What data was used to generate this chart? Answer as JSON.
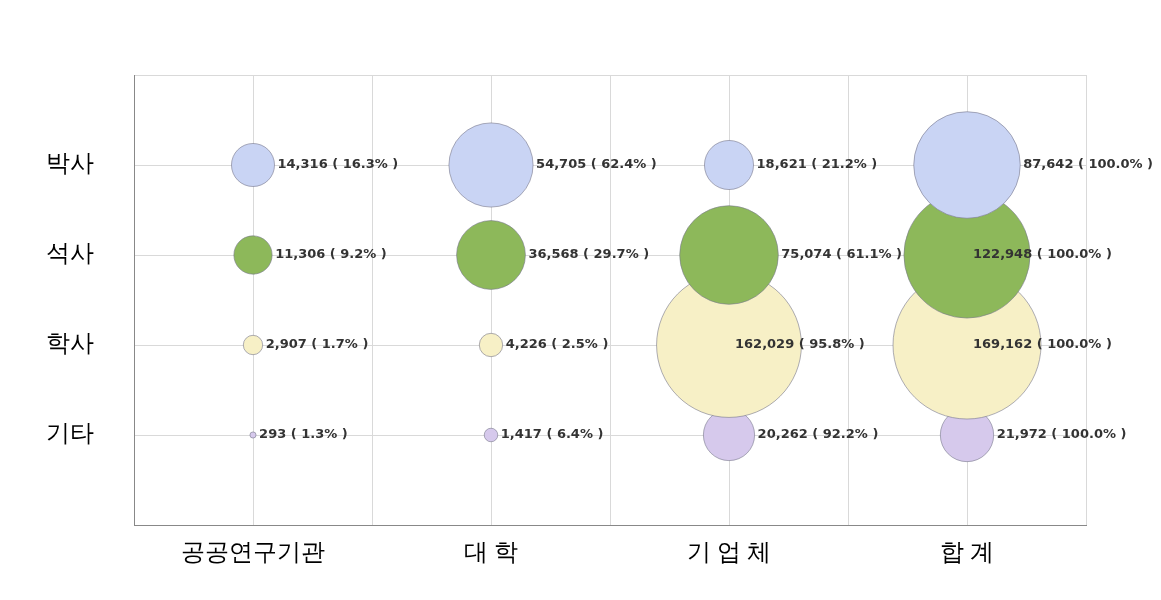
{
  "chart_data": {
    "type": "other",
    "categories": [
      "공공연구기관",
      "대 학",
      "기 업 체",
      "합 계"
    ],
    "y_categories": [
      "박사",
      "석사",
      "학사",
      "기타"
    ],
    "series": [
      {
        "color": "#c9d4f4",
        "values": [
          14316,
          54705,
          18621,
          87642
        ],
        "value_labels": [
          "14,316 ( 16.3% )",
          "54,705 ( 62.4% )",
          "18,621 ( 21.2% )",
          "87,642 ( 100.0% )"
        ]
      },
      {
        "color": "#8db85a",
        "values": [
          11306,
          36568,
          75074,
          122948
        ],
        "value_labels": [
          "11,306 ( 9.2% )",
          "36,568 ( 29.7% )",
          "75,074 ( 61.1% )",
          "122,948 ( 100.0% )"
        ]
      },
      {
        "color": "#f7f0c6",
        "values": [
          2907,
          4226,
          162029,
          169162
        ],
        "value_labels": [
          "2,907 ( 1.7% )",
          "4,226 ( 2.5% )",
          "162,029 ( 95.8% )",
          "169,162 ( 100.0% )"
        ]
      },
      {
        "color": "#d6c9ec",
        "values": [
          293,
          1417,
          20262,
          21972
        ],
        "value_labels": [
          "293 ( 1.3% )",
          "1,417 ( 6.4% )",
          "20,262 ( 92.2% )",
          "21,972 ( 100.0% )"
        ]
      }
    ]
  }
}
